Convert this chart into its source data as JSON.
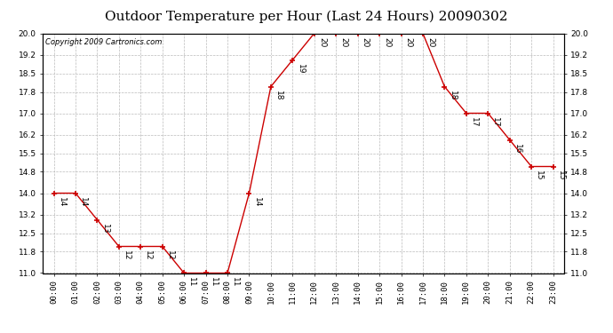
{
  "title": "Outdoor Temperature per Hour (Last 24 Hours) 20090302",
  "copyright": "Copyright 2009 Cartronics.com",
  "hours": [
    "00:00",
    "01:00",
    "02:00",
    "03:00",
    "04:00",
    "05:00",
    "06:00",
    "07:00",
    "08:00",
    "09:00",
    "10:00",
    "11:00",
    "12:00",
    "13:00",
    "14:00",
    "15:00",
    "16:00",
    "17:00",
    "18:00",
    "19:00",
    "20:00",
    "21:00",
    "22:00",
    "23:00"
  ],
  "temps": [
    14,
    14,
    13,
    12,
    12,
    12,
    11,
    11,
    11,
    14,
    18,
    19,
    20,
    20,
    20,
    20,
    20,
    20,
    18,
    17,
    17,
    16,
    15,
    15
  ],
  "ylim_min": 11.0,
  "ylim_max": 20.0,
  "yticks": [
    11.0,
    11.8,
    12.5,
    13.2,
    14.0,
    14.8,
    15.5,
    16.2,
    17.0,
    17.8,
    18.5,
    19.2,
    20.0
  ],
  "line_color": "#cc0000",
  "marker_color": "#cc0000",
  "grid_color": "#bbbbbb",
  "bg_color": "#ffffff",
  "title_fontsize": 11,
  "label_fontsize": 6.5,
  "annot_fontsize": 6.5,
  "copyright_fontsize": 6
}
